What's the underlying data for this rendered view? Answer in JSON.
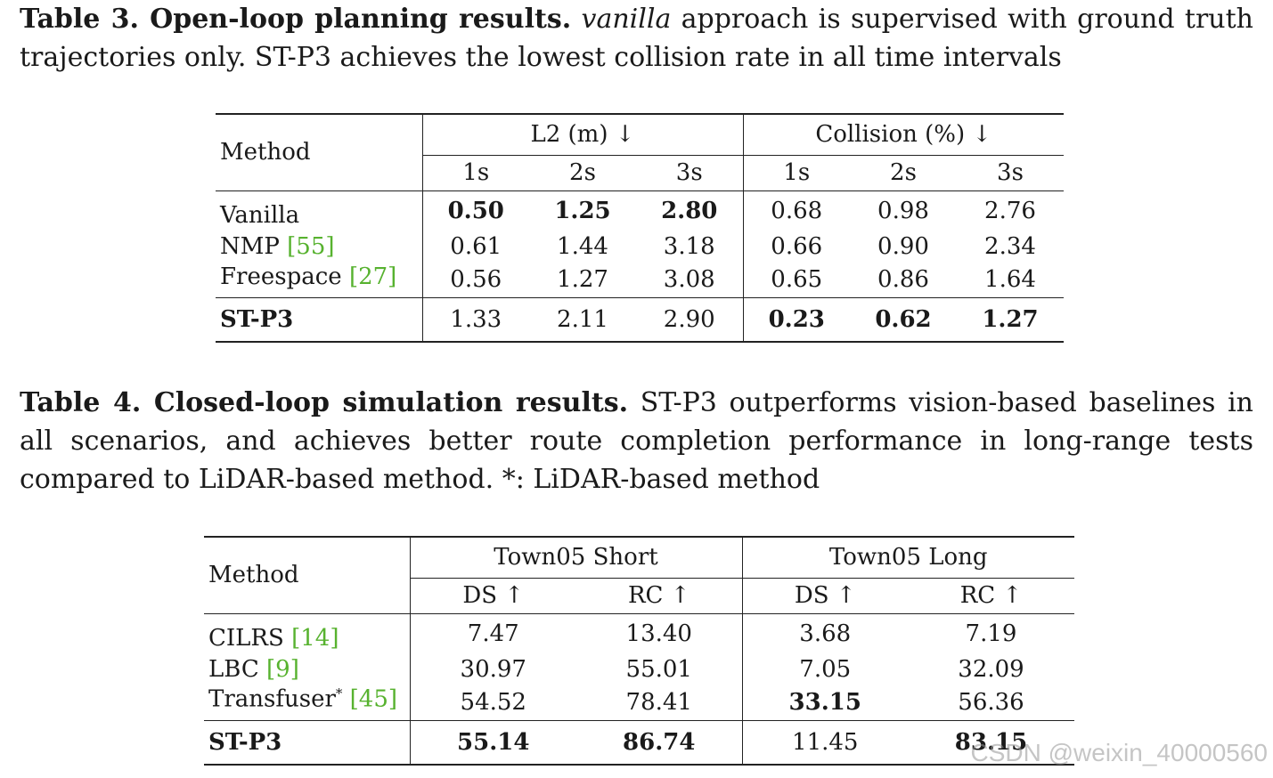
{
  "table3": {
    "caption_label": "Table 3. Open-loop planning results.",
    "caption_italic": "vanilla",
    "caption_rest": " approach is supervised with ground truth trajectories only. ST-P3 achieves the lowest collision rate in all time intervals",
    "method_header": "Method",
    "group1": "L2 (m) ↓",
    "group2": "Collision (%) ↓",
    "subcols": [
      "1s",
      "2s",
      "3s",
      "1s",
      "2s",
      "3s"
    ],
    "rows": [
      {
        "method": "Vanilla",
        "cite": "",
        "values": [
          "0.50",
          "1.25",
          "2.80",
          "0.68",
          "0.98",
          "2.76"
        ]
      },
      {
        "method": "NMP ",
        "cite": "[55]",
        "values": [
          "0.61",
          "1.44",
          "3.18",
          "0.66",
          "0.90",
          "2.34"
        ]
      },
      {
        "method": "Freespace ",
        "cite": "[27]",
        "values": [
          "0.56",
          "1.27",
          "3.08",
          "0.65",
          "0.86",
          "1.64"
        ]
      }
    ],
    "final_row": {
      "method": "ST-P3",
      "values": [
        "1.33",
        "2.11",
        "2.90",
        "0.23",
        "0.62",
        "1.27"
      ]
    }
  },
  "table4": {
    "caption_label": "Table 4. Closed-loop simulation results.",
    "caption_rest": " ST-P3 outperforms vision-based baselines in all scenarios, and achieves better route completion performance in long-range tests compared to LiDAR-based method. *: LiDAR-based method",
    "method_header": "Method",
    "group1": "Town05 Short",
    "group2": "Town05 Long",
    "subcols": [
      "DS ↑",
      "RC ↑",
      "DS ↑",
      "RC ↑"
    ],
    "rows": [
      {
        "method": "CILRS ",
        "sup": "",
        "cite": "[14]",
        "values": [
          "7.47",
          "13.40",
          "3.68",
          "7.19"
        ]
      },
      {
        "method": "LBC ",
        "sup": "",
        "cite": "[9]",
        "values": [
          "30.97",
          "55.01",
          "7.05",
          "32.09"
        ]
      },
      {
        "method": "Transfuser",
        "sup": "*",
        "cite": "[45]",
        "values": [
          "54.52",
          "78.41",
          "33.15",
          "56.36"
        ]
      }
    ],
    "final_row": {
      "method": "ST-P3",
      "values": [
        "55.14",
        "86.74",
        "11.45",
        "83.15"
      ]
    }
  },
  "watermark": "CSDN @weixin_40000560"
}
